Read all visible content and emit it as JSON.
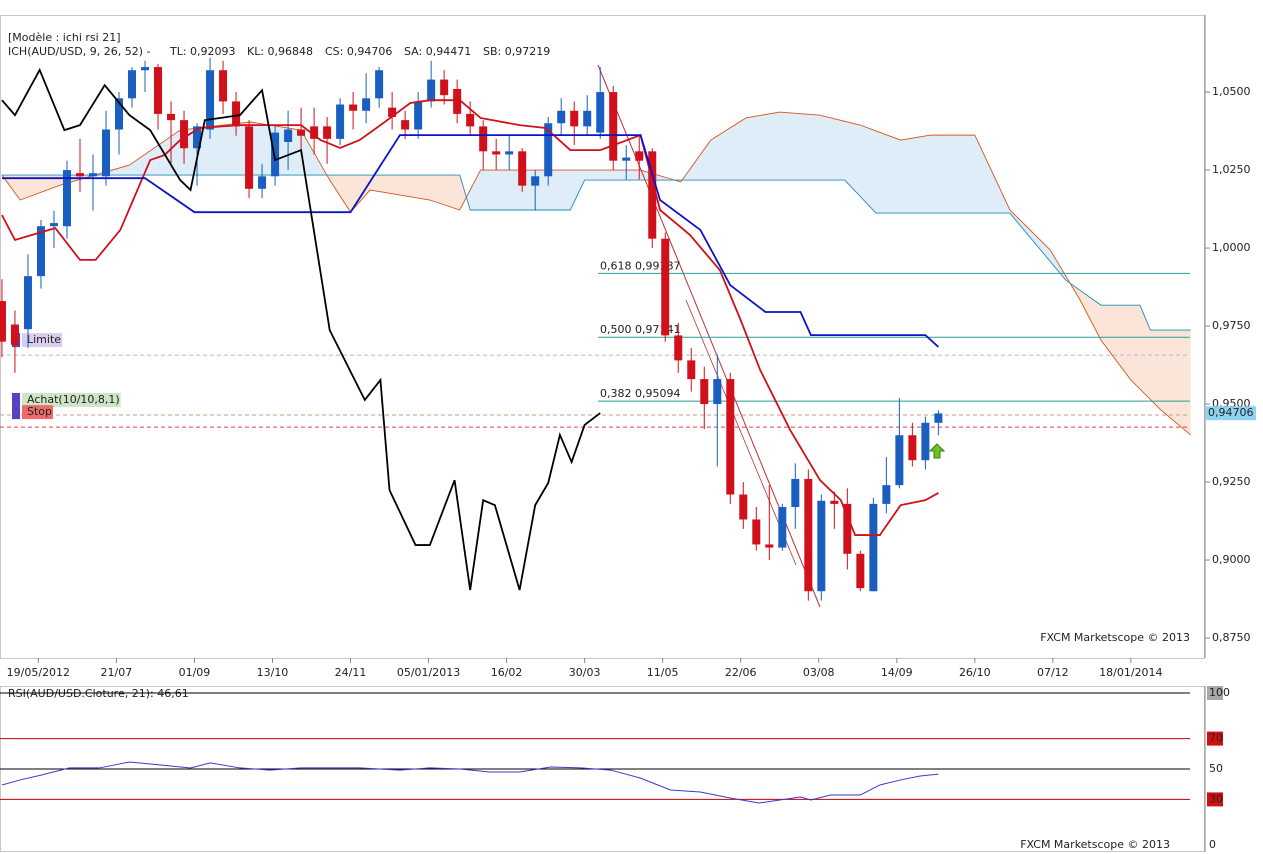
{
  "header": {
    "model": "[Modèle : ichi rsi 21]",
    "indicator": "ICH(AUD/USD, 9, 26, 52) -",
    "tl": "TL: 0,92093",
    "kl": "KL: 0,96848",
    "cs": "CS: 0,94706",
    "sa": "SA: 0,94471",
    "sb": "SB: 0,97219"
  },
  "watermark": "FXCM Marketscope © 2013",
  "chart_data": [
    {
      "type": "candlestick",
      "up_color": "#1a5fbf",
      "down_color": "#d0101a",
      "xlim": [
        -0.15,
        92.5
      ],
      "xticks": [
        {
          "value": 2.8,
          "label": "19/05/2012"
        },
        {
          "value": 8.8,
          "label": "21/07"
        },
        {
          "value": 14.8,
          "label": "01/09"
        },
        {
          "value": 20.8,
          "label": "13/10"
        },
        {
          "value": 26.8,
          "label": "24/11"
        },
        {
          "value": 32.8,
          "label": "05/01/2013"
        },
        {
          "value": 38.8,
          "label": "16/02"
        },
        {
          "value": 44.8,
          "label": "30/03"
        },
        {
          "value": 50.8,
          "label": "11/05"
        },
        {
          "value": 56.8,
          "label": "22/06"
        },
        {
          "value": 62.8,
          "label": "03/08"
        },
        {
          "value": 68.8,
          "label": "14/09"
        },
        {
          "value": 74.8,
          "label": "26/10"
        },
        {
          "value": 80.8,
          "label": "07/12"
        },
        {
          "value": 86.8,
          "label": "18/01/2014"
        }
      ],
      "ylim": [
        0.8686,
        1.0747
      ],
      "yticks": [
        {
          "value": 1.05,
          "label": "1,0500"
        },
        {
          "value": 1.025,
          "label": "1,0250"
        },
        {
          "value": 1.0,
          "label": "1,0000"
        },
        {
          "value": 0.975,
          "label": "0,9750"
        },
        {
          "value": 0.95,
          "label": "0,9500"
        },
        {
          "value": 0.925,
          "label": "0,9250"
        },
        {
          "value": 0.9,
          "label": "0,9000"
        },
        {
          "value": 0.875,
          "label": "0,8750"
        }
      ],
      "open": [
        0.983,
        0.9755,
        0.974,
        0.991,
        1.007,
        1.007,
        1.024,
        1.023,
        1.023,
        1.038,
        1.048,
        1.057,
        1.058,
        1.043,
        1.041,
        1.032,
        1.038,
        1.057,
        1.047,
        1.039,
        1.019,
        1.023,
        1.034,
        1.038,
        1.039,
        1.039,
        1.035,
        1.046,
        1.044,
        1.048,
        1.045,
        1.041,
        1.038,
        1.047,
        1.054,
        1.051,
        1.043,
        1.039,
        1.031,
        1.03,
        1.031,
        1.02,
        1.023,
        1.04,
        1.044,
        1.039,
        1.037,
        1.05,
        1.028,
        1.031,
        1.031,
        1.003,
        0.972,
        0.964,
        0.958,
        0.95,
        0.958,
        0.921,
        0.913,
        0.905,
        0.904,
        0.917,
        0.926,
        0.89,
        0.919,
        0.918,
        0.902,
        0.89,
        0.918,
        0.924,
        0.94,
        0.932,
        0.944
      ],
      "high": [
        0.99,
        0.98,
        0.998,
        1.009,
        1.012,
        1.028,
        1.035,
        1.03,
        1.044,
        1.05,
        1.058,
        1.06,
        1.059,
        1.047,
        1.044,
        1.04,
        1.061,
        1.06,
        1.05,
        1.041,
        1.027,
        1.039,
        1.044,
        1.045,
        1.045,
        1.042,
        1.048,
        1.05,
        1.056,
        1.058,
        1.05,
        1.044,
        1.05,
        1.06,
        1.057,
        1.054,
        1.047,
        1.041,
        1.035,
        1.036,
        1.032,
        1.025,
        1.042,
        1.048,
        1.047,
        1.049,
        1.058,
        1.052,
        1.033,
        1.036,
        1.032,
        1.005,
        0.976,
        0.968,
        0.962,
        0.966,
        0.96,
        0.925,
        0.917,
        0.924,
        0.918,
        0.931,
        0.929,
        0.921,
        0.922,
        0.923,
        0.903,
        0.92,
        0.933,
        0.952,
        0.944,
        0.946,
        0.948
      ],
      "low": [
        0.965,
        0.96,
        0.968,
        0.987,
        1.0,
        1.003,
        1.018,
        1.012,
        1.02,
        1.03,
        1.045,
        1.05,
        1.038,
        1.027,
        1.027,
        1.02,
        1.035,
        1.043,
        1.036,
        1.016,
        1.016,
        1.02,
        1.025,
        1.03,
        1.03,
        1.027,
        1.033,
        1.038,
        1.04,
        1.045,
        1.038,
        1.035,
        1.035,
        1.045,
        1.046,
        1.04,
        1.036,
        1.025,
        1.025,
        1.025,
        1.018,
        1.012,
        1.02,
        1.036,
        1.033,
        1.036,
        1.035,
        1.025,
        1.022,
        1.022,
        1.0,
        0.97,
        0.96,
        0.954,
        0.942,
        0.93,
        0.918,
        0.91,
        0.903,
        0.9,
        0.903,
        0.91,
        0.887,
        0.887,
        0.91,
        0.897,
        0.89,
        0.89,
        0.915,
        0.923,
        0.93,
        0.929,
        0.94
      ],
      "close": [
        0.97,
        0.969,
        0.991,
        1.007,
        1.008,
        1.025,
        1.023,
        1.024,
        1.038,
        1.048,
        1.057,
        1.058,
        1.043,
        1.041,
        1.032,
        1.039,
        1.057,
        1.047,
        1.039,
        1.019,
        1.023,
        1.037,
        1.038,
        1.036,
        1.035,
        1.035,
        1.046,
        1.044,
        1.048,
        1.057,
        1.042,
        1.038,
        1.047,
        1.054,
        1.049,
        1.043,
        1.039,
        1.031,
        1.03,
        1.031,
        1.02,
        1.023,
        1.04,
        1.044,
        1.039,
        1.044,
        1.05,
        1.028,
        1.029,
        1.028,
        1.003,
        0.972,
        0.964,
        0.958,
        0.95,
        0.958,
        0.921,
        0.913,
        0.905,
        0.904,
        0.917,
        0.926,
        0.89,
        0.919,
        0.918,
        0.902,
        0.891,
        0.918,
        0.924,
        0.94,
        0.932,
        0.944,
        0.947
      ],
      "lines": [
        {
          "color": "#d0101a",
          "x": [
            0,
            1,
            4.1,
            6,
            7.2,
            9.1,
            11.4,
            12.5,
            13.7,
            15.2,
            18.3,
            23,
            24.5,
            26,
            27.5,
            29.1,
            31.4,
            32.9,
            35.2,
            36.8,
            39.8,
            41.8,
            43.7,
            46,
            49.1,
            50.6,
            52.9,
            55.2,
            56.8,
            58.3,
            60.6,
            62.9,
            64.5,
            65.6,
            67.5,
            69.1,
            71,
            72
          ],
          "values": [
            1.0106,
            1.0026,
            1.0064,
            0.9962,
            0.9962,
            1.0058,
            1.0282,
            1.0298,
            1.0346,
            1.0385,
            1.0394,
            1.0394,
            1.0346,
            1.0321,
            1.0346,
            1.0394,
            1.0465,
            1.0474,
            1.0474,
            1.0417,
            1.0394,
            1.0385,
            1.0314,
            1.0314,
            1.0362,
            1.0122,
            1.0042,
            0.9929,
            0.9769,
            0.9609,
            0.9417,
            0.9256,
            0.9192,
            0.908,
            0.908,
            0.9176,
            0.9192,
            0.9215
          ]
        },
        {
          "color": "#0a14c8",
          "x": [
            0,
            11,
            14.8,
            26.8,
            30.6,
            49.1,
            50.6,
            53.7,
            56,
            58.7,
            61.4,
            62.2,
            71,
            72
          ],
          "values": [
            1.0224,
            1.0224,
            1.0115,
            1.0115,
            1.0362,
            1.0362,
            1.0154,
            1.0058,
            0.9881,
            0.9795,
            0.9795,
            0.9721,
            0.9721,
            0.9683
          ]
        },
        {
          "color": "#000000",
          "x": [
            0,
            1,
            2.9,
            4.8,
            6,
            7.9,
            9.8,
            11.4,
            13.7,
            14.5,
            15.6,
            18.3,
            20,
            21,
            23,
            25.2,
            27.9,
            29.1,
            29.8,
            31.8,
            32.9,
            34.8,
            36,
            37,
            37.9,
            39.8,
            41,
            42,
            42.9,
            43.8,
            44.8,
            46
          ],
          "values": [
            1.0474,
            1.0426,
            1.0571,
            1.0378,
            1.0394,
            1.0522,
            1.0426,
            1.0378,
            1.0218,
            1.0186,
            1.041,
            1.0426,
            1.0506,
            1.0282,
            1.0314,
            0.9737,
            0.9513,
            0.9577,
            0.9224,
            0.9048,
            0.9048,
            0.9256,
            0.8904,
            0.9192,
            0.9176,
            0.8904,
            0.9176,
            0.9247,
            0.9401,
            0.9314,
            0.9433,
            0.9471
          ]
        }
      ],
      "cloud": {
        "fill_a": "#deedf7",
        "fill_b": "#fbe4d8",
        "span_a": {
          "color": "#d2571e",
          "x": [
            0,
            1.4,
            4.5,
            9.8,
            13.7,
            19.1,
            23,
            25.2,
            26.8,
            28.3,
            32.9,
            35.2,
            36.8,
            49.1,
            52.2,
            54.5,
            57.2,
            59.8,
            62.9,
            66,
            69.1,
            71.4,
            74.8,
            77.5,
            80.6,
            82.9,
            84.5,
            86.8,
            89.1,
            91.4
          ],
          "values": [
            1.0234,
            1.0154,
            1.0202,
            1.0266,
            1.0378,
            1.0404,
            1.0378,
            1.0218,
            1.0115,
            1.0186,
            1.0154,
            1.0122,
            1.025,
            1.025,
            1.0212,
            1.0346,
            1.0417,
            1.0436,
            1.0426,
            1.0394,
            1.0346,
            1.0362,
            1.0362,
            1.0122,
            0.9994,
            0.9833,
            0.9705,
            0.9577,
            0.9481,
            0.9401
          ]
        },
        "span_b": {
          "color": "#1f8fb0",
          "x": [
            0,
            35.2,
            36,
            43.7,
            44.8,
            64.8,
            67.2,
            77.5,
            81.8,
            84.5,
            87.5,
            88.3,
            91.4
          ],
          "values": [
            1.0234,
            1.0234,
            1.0122,
            1.0122,
            1.0218,
            1.0218,
            1.0112,
            1.0112,
            0.9897,
            0.9817,
            0.9817,
            0.9737,
            0.9737
          ]
        }
      },
      "fibo": [
        {
          "value": 0.99187,
          "label": "0,618 0,99187"
        },
        {
          "value": 0.97141,
          "label": "0,500 0,97141"
        },
        {
          "value": 0.95094,
          "label": "0,382 0,95094"
        }
      ],
      "orders": [
        {
          "value": 0.9657,
          "label": "Limite",
          "color": "#b8b8c8",
          "box": "#dccdf0",
          "text": "#8a5fb8"
        },
        {
          "value": 0.9465,
          "label": "Achat(10/10,8,1)",
          "color": "#c8a080",
          "box": "#cfe6c6",
          "text": "#8a9a8a"
        },
        {
          "value": 0.9426,
          "label": "Stop",
          "color": "#e04040",
          "box": "#ef6a6a",
          "text": "#ffffff"
        }
      ],
      "last_price": {
        "value": 0.94706,
        "label": "0,94706"
      }
    },
    {
      "type": "line",
      "title": "RSI(AUD/USD.Cloture, 21): 46,61",
      "color": "#3a3ac8",
      "xlim": [
        -0.15,
        92.5
      ],
      "ylim": [
        0,
        100
      ],
      "yticks": [
        100,
        70,
        50,
        30,
        0
      ],
      "tick_colors": [
        "#000000",
        "#c00000",
        "#000000",
        "#c00000",
        null
      ],
      "x": [
        0,
        1.4,
        3,
        5.2,
        7.5,
        9.8,
        12.2,
        14.5,
        16,
        18.3,
        20.6,
        23,
        25.2,
        27.5,
        30.6,
        32.9,
        35.2,
        37.5,
        39.8,
        42.2,
        44.5,
        46.8,
        49.1,
        51.4,
        53.7,
        56,
        58.2,
        59.8,
        61.4,
        62.2,
        63.7,
        66,
        67.5,
        69.1,
        70.6,
        72
      ],
      "values": [
        39.5,
        42.8,
        46,
        50.7,
        50.7,
        54.6,
        52.6,
        50.7,
        54,
        50.7,
        49.3,
        50.7,
        50.7,
        50.7,
        49.3,
        50.7,
        50,
        48,
        48,
        51.3,
        50.7,
        49.3,
        44,
        36.2,
        34.9,
        30.9,
        27.6,
        29.6,
        31.6,
        29.6,
        32.9,
        32.9,
        39.5,
        42.8,
        45.4,
        46.61
      ]
    }
  ]
}
